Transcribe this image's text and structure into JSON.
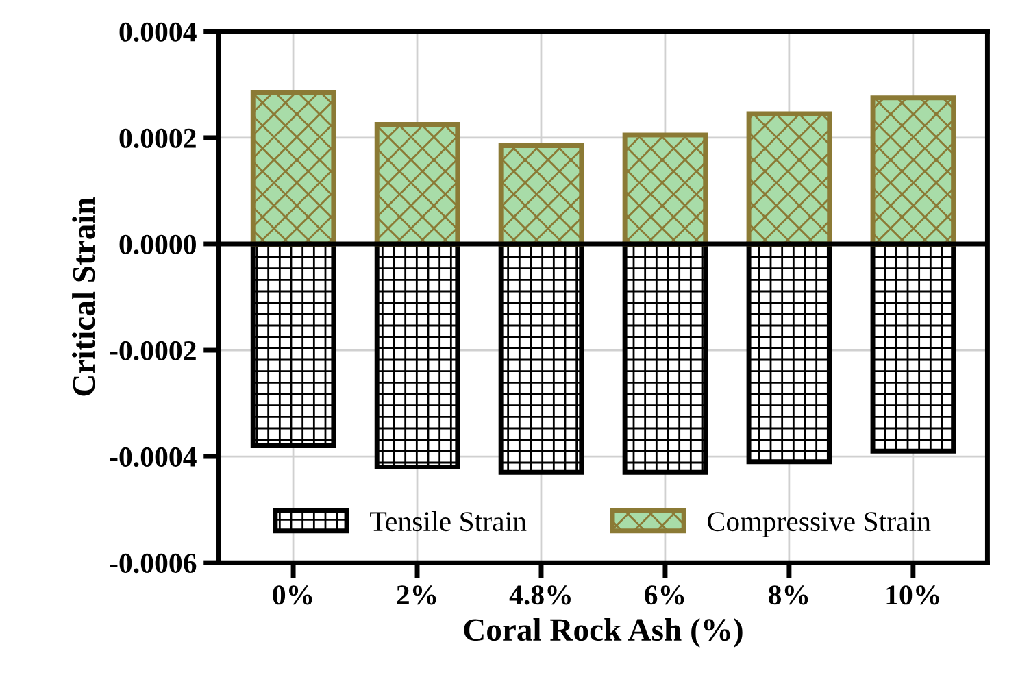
{
  "chart_data": {
    "type": "bar",
    "xlabel": "Coral Rock Ash (%)",
    "ylabel": "Critical Strain",
    "categories": [
      "0%",
      "2%",
      "4.8%",
      "6%",
      "8%",
      "10%"
    ],
    "series": [
      {
        "name": "Tensile Strain",
        "color": "#000000",
        "values": [
          -0.00038,
          -0.00042,
          -0.00043,
          -0.00043,
          -0.00041,
          -0.00039
        ]
      },
      {
        "name": "Compressive Strain",
        "color": "#8b7a35",
        "values": [
          0.000285,
          0.000225,
          0.000185,
          0.000205,
          0.000245,
          0.000275
        ]
      }
    ],
    "stacked": true,
    "ylim": [
      -0.0006,
      0.0004
    ],
    "yticks": [
      {
        "value": -0.0006,
        "label": "-0.0006"
      },
      {
        "value": -0.0004,
        "label": "-0.0004"
      },
      {
        "value": -0.0002,
        "label": "-0.0002"
      },
      {
        "value": 0,
        "label": "0.0000"
      },
      {
        "value": 0.0002,
        "label": "0.0002"
      },
      {
        "value": 0.0004,
        "label": "0.0004"
      }
    ],
    "grid": true,
    "legend": "bottom",
    "ref_lines": [
      {
        "axis": "y",
        "value": 0,
        "color": "#000000"
      }
    ]
  }
}
